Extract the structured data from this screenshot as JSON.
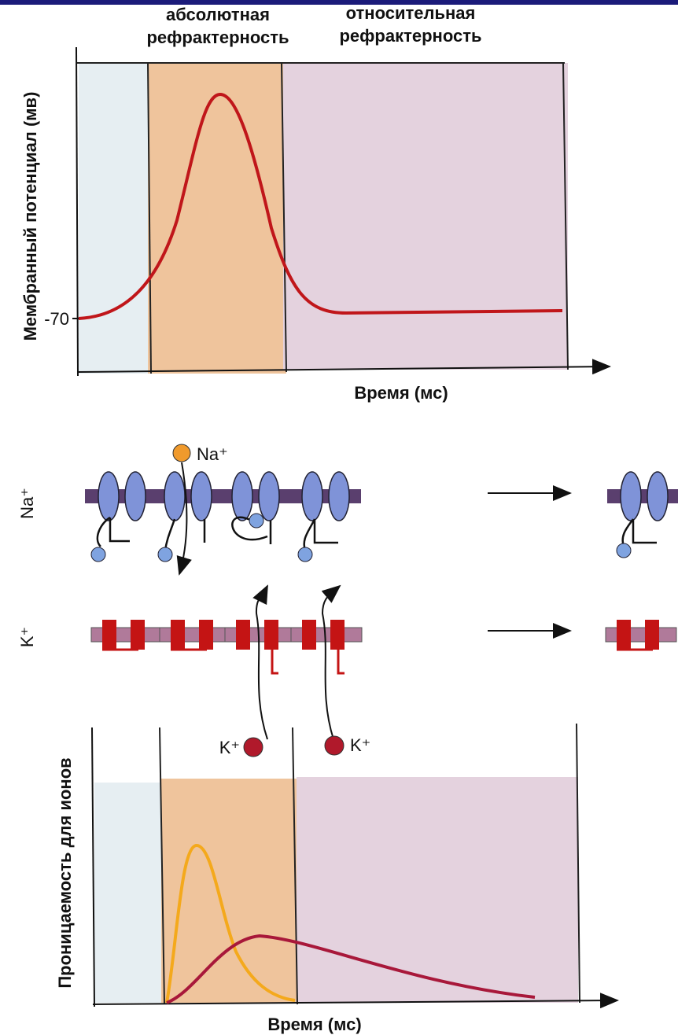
{
  "top_panel": {
    "absolute_zone": [
      "абсолютная",
      "рефрактерность"
    ],
    "relative_zone": [
      "относительная",
      "рефрактерность"
    ],
    "y_label": "Мембранный потенциал (мв)",
    "y_tick": "-70",
    "x_label": "Время (мс)"
  },
  "channels": {
    "na_row_label": "Na⁺",
    "na_ion": "Na⁺",
    "k_row_label": "K⁺",
    "k_ion_1": "K⁺",
    "k_ion_2": "K⁺"
  },
  "bottom_panel": {
    "y_label": "Проницаемость для ионов",
    "x_label": "Время (мс)"
  }
}
